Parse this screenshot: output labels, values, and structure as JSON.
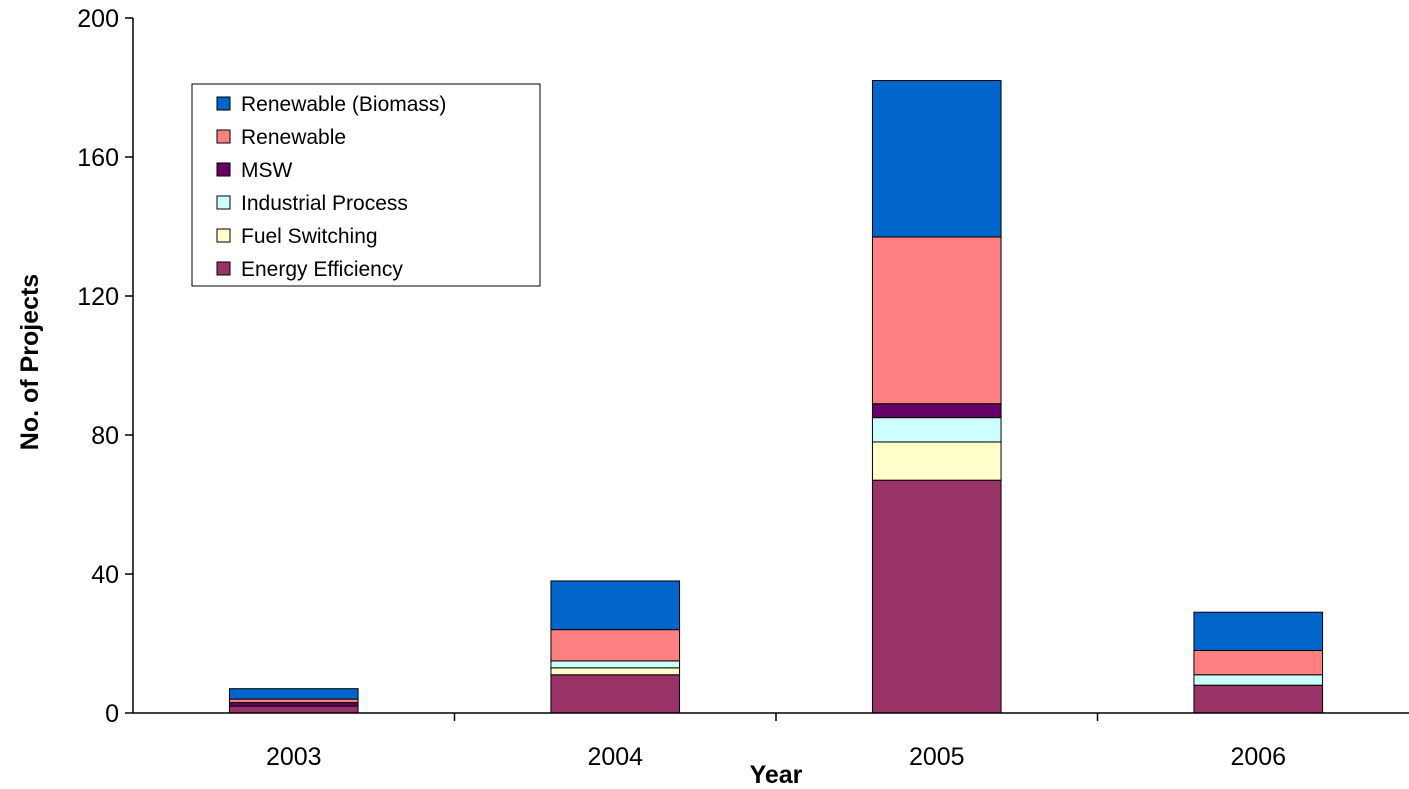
{
  "chart_data": {
    "type": "bar",
    "stacked": true,
    "title": "",
    "xlabel": "Year",
    "ylabel": "No. of Projects",
    "categories": [
      "2003",
      "2004",
      "2005",
      "2006"
    ],
    "ylim": [
      0,
      200
    ],
    "yticks": [
      0,
      40,
      80,
      120,
      160,
      200
    ],
    "grid": false,
    "legend_position": "top-left",
    "series": [
      {
        "name": "Energy Efficiency",
        "color": "#993366",
        "values": [
          2,
          11,
          67,
          8
        ]
      },
      {
        "name": "Fuel Switching",
        "color": "#FFFFCC",
        "values": [
          0,
          2,
          11,
          0
        ]
      },
      {
        "name": "Industrial Process",
        "color": "#CCFFFF",
        "values": [
          0,
          2,
          7,
          3
        ]
      },
      {
        "name": "MSW",
        "color": "#660066",
        "values": [
          1,
          0,
          4,
          0
        ]
      },
      {
        "name": "Renewable",
        "color": "#FF8080",
        "values": [
          1,
          9,
          48,
          7
        ]
      },
      {
        "name": "Renewable (Biomass)",
        "color": "#0066CC",
        "values": [
          3,
          14,
          45,
          11
        ]
      }
    ],
    "legend_order": [
      "Renewable (Biomass)",
      "Renewable",
      "MSW",
      "Industrial Process",
      "Fuel Switching",
      "Energy Efficiency"
    ]
  }
}
